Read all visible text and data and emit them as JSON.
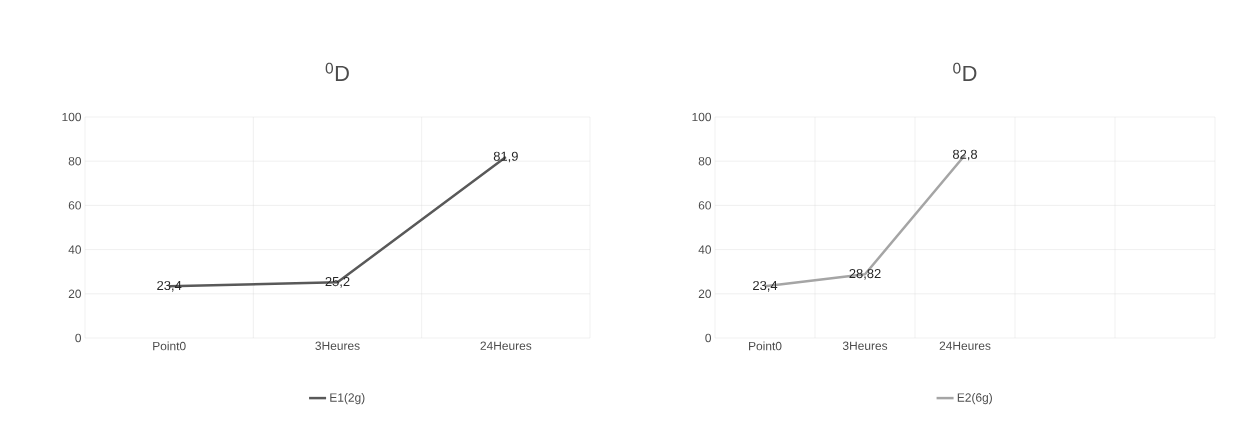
{
  "chart_data": [
    {
      "type": "line",
      "title": "$^{0}$D",
      "categories": [
        "Point0",
        "3Heures",
        "24Heures"
      ],
      "series": [
        {
          "name": "E1(2g)",
          "color": "#595959",
          "values": [
            23.4,
            25.2,
            81.9
          ],
          "value_labels": [
            "23,4",
            "25,2",
            "81,9"
          ]
        }
      ],
      "ylim": [
        0,
        100
      ],
      "yticks": [
        0,
        20,
        40,
        60,
        80,
        100
      ],
      "grid": true,
      "legend": "bottom",
      "marker": "none",
      "line_style": "solid"
    },
    {
      "type": "line",
      "title": "$^{0}$D",
      "categories": [
        "Point0",
        "3Heures",
        "24Heures",
        null,
        null
      ],
      "series": [
        {
          "name": "E2(6g)",
          "color": "#a5a5a5",
          "values": [
            23.4,
            28.82,
            82.8,
            null,
            null
          ],
          "value_labels": [
            "23,4",
            "28,82",
            "82,8",
            null,
            null
          ]
        }
      ],
      "ylim": [
        0,
        100
      ],
      "yticks": [
        0,
        20,
        40,
        60,
        80,
        100
      ],
      "grid": true,
      "legend": "bottom",
      "marker": "none",
      "line_style": "solid"
    }
  ]
}
